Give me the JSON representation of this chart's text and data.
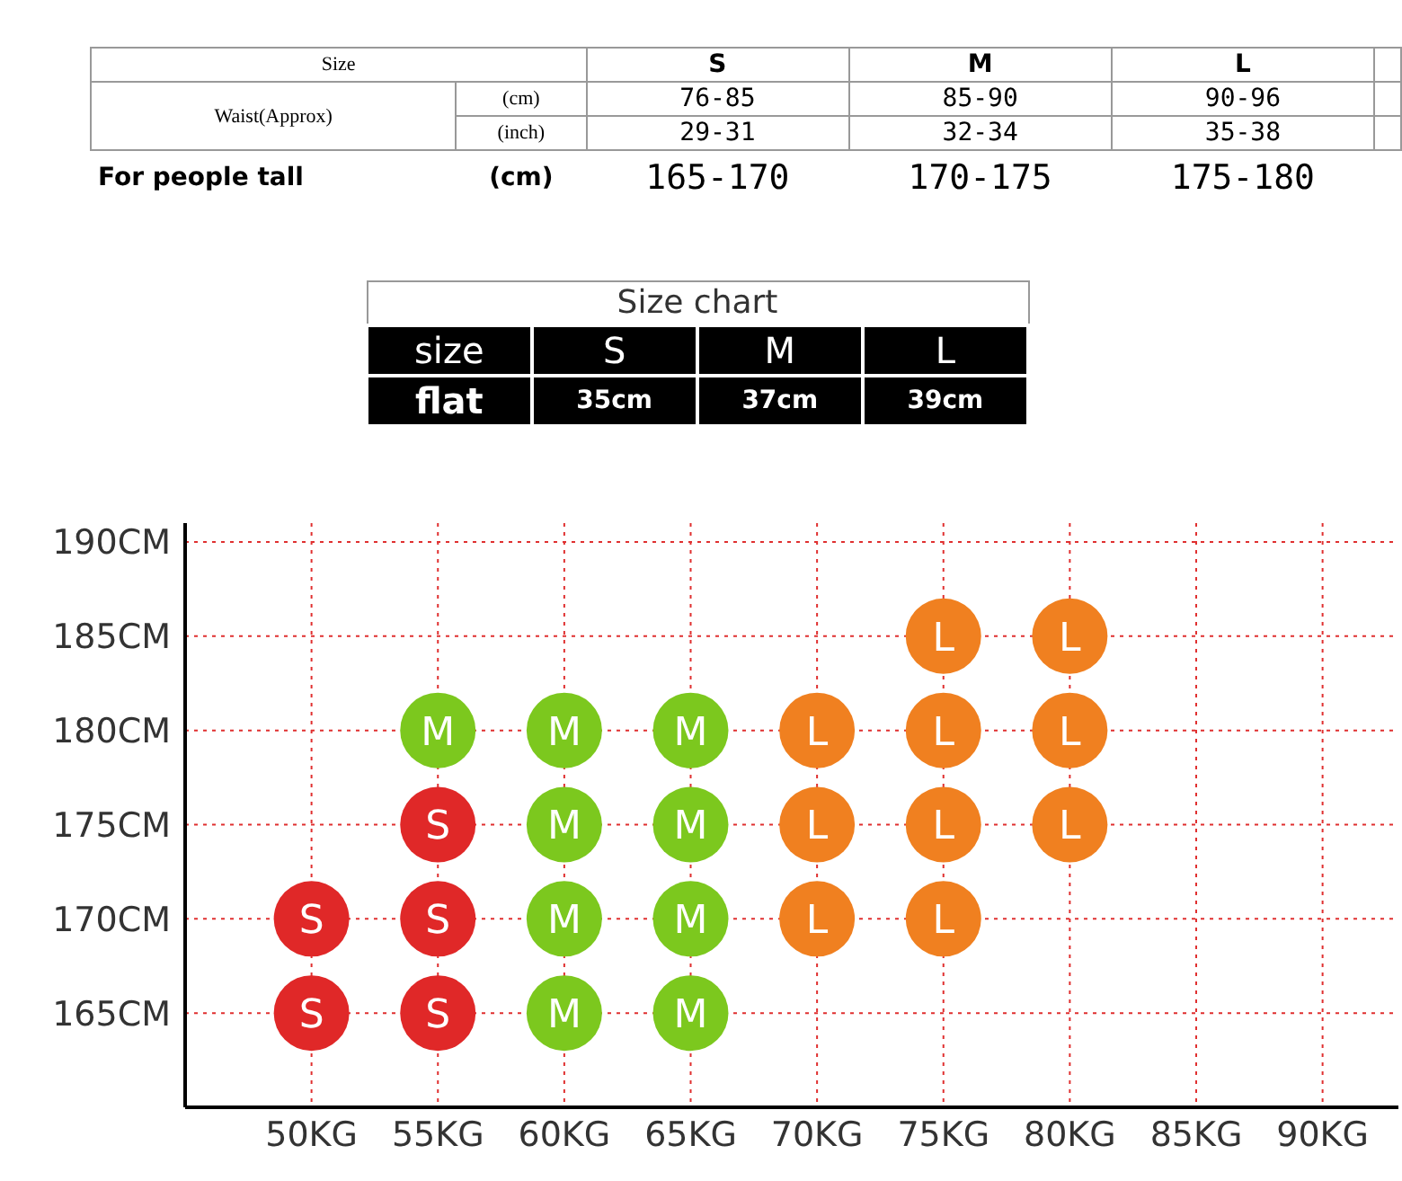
{
  "chart_data": [
    {
      "type": "other",
      "annotations": [
        "Size",
        "S",
        "M",
        "L",
        "Waist(Approx)",
        "(cm)",
        "76-85",
        "85-90",
        "90-96",
        "(inch)",
        "29-31",
        "32-34",
        "35-38",
        "For people tall",
        "(cm)",
        "165-170",
        "170-175",
        "175-180"
      ]
    },
    {
      "type": "other",
      "title": "Size chart",
      "annotations": [
        "size",
        "S",
        "M",
        "L",
        "flat",
        "35cm",
        "37cm",
        "39cm"
      ]
    },
    {
      "type": "scatter",
      "marker": "circle",
      "grid": true,
      "legend": false,
      "xlim": [
        45,
        93
      ],
      "xticks": [
        {
          "value": 50,
          "label": "50KG"
        },
        {
          "value": 55,
          "label": "55KG"
        },
        {
          "value": 60,
          "label": "60KG"
        },
        {
          "value": 65,
          "label": "65KG"
        },
        {
          "value": 70,
          "label": "70KG"
        },
        {
          "value": 75,
          "label": "75KG"
        },
        {
          "value": 80,
          "label": "80KG"
        },
        {
          "value": 85,
          "label": "85KG"
        },
        {
          "value": 90,
          "label": "90KG"
        }
      ],
      "ylim": [
        160,
        191
      ],
      "yticks": [
        {
          "value": 165,
          "label": "165CM"
        },
        {
          "value": 170,
          "label": "170CM"
        },
        {
          "value": 175,
          "label": "175CM"
        },
        {
          "value": 180,
          "label": "180CM"
        },
        {
          "value": 185,
          "label": "185CM"
        },
        {
          "value": 190,
          "label": "190CM"
        }
      ],
      "series": [
        {
          "name": "S",
          "color": "#e02828",
          "x": [
            50,
            50,
            55,
            55,
            55
          ],
          "values": [
            170,
            165,
            175,
            170,
            165
          ]
        },
        {
          "name": "M",
          "color": "#7cc81e",
          "x": [
            55,
            60,
            60,
            60,
            60,
            65,
            65,
            65,
            65
          ],
          "values": [
            180,
            180,
            175,
            170,
            165,
            180,
            175,
            170,
            165
          ]
        },
        {
          "name": "L",
          "color": "#f08020",
          "x": [
            70,
            70,
            70,
            75,
            75,
            75,
            75,
            80,
            80,
            80
          ],
          "values": [
            180,
            175,
            170,
            185,
            180,
            175,
            170,
            185,
            180,
            175
          ]
        }
      ]
    }
  ]
}
